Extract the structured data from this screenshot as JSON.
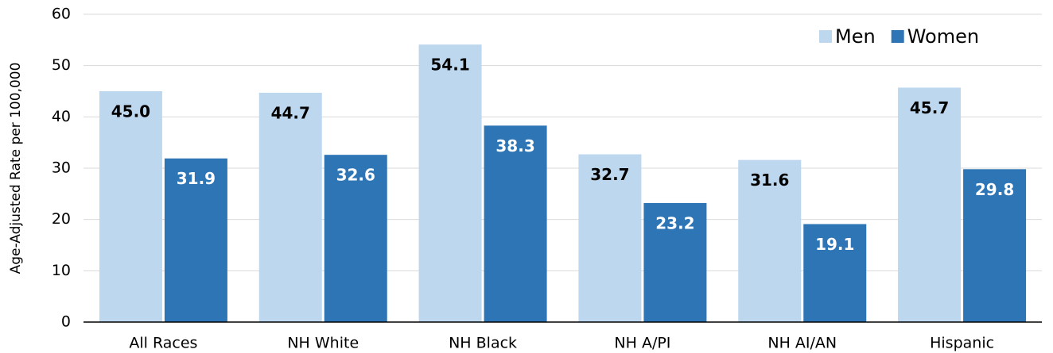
{
  "chart_data": {
    "type": "bar",
    "y_label": "Age-Adjusted Rate per 100,000",
    "categories": [
      "All Races",
      "NH White",
      "NH Black",
      "NH A/PI",
      "NH AI/AN",
      "Hispanic"
    ],
    "series": [
      {
        "name": "Men",
        "color": "#bdd7ee",
        "label_color": "#000000",
        "values": [
          45.0,
          44.7,
          54.1,
          32.7,
          31.6,
          45.7
        ],
        "value_labels": [
          "45.0",
          "44.7",
          "54.1",
          "32.7",
          "31.6",
          "45.7"
        ]
      },
      {
        "name": "Women",
        "color": "#2e75b6",
        "label_color": "#ffffff",
        "values": [
          31.9,
          32.6,
          38.3,
          23.2,
          19.1,
          29.8
        ],
        "value_labels": [
          "31.9",
          "32.6",
          "38.3",
          "23.2",
          "19.1",
          "29.8"
        ]
      }
    ],
    "ylim": [
      0,
      60
    ],
    "yticks": [
      0,
      10,
      20,
      30,
      40,
      50,
      60
    ],
    "grid": true,
    "legend": "top-right"
  }
}
